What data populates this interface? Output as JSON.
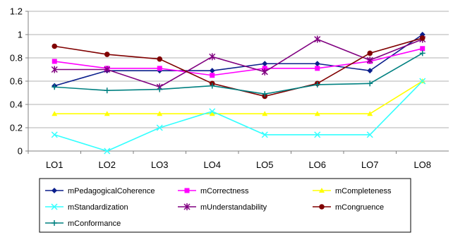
{
  "chart_data": {
    "type": "line",
    "categories": [
      "LO1",
      "LO2",
      "LO3",
      "LO4",
      "LO5",
      "LO6",
      "LO7",
      "LO8"
    ],
    "ylim": [
      0,
      1.2
    ],
    "yticks": [
      "0",
      "0.2",
      "0.4",
      "0.6",
      "0.8",
      "1",
      "1.2"
    ],
    "grid": true,
    "legend_position": "bottom",
    "series": [
      {
        "name": "mPedagogicalCoherence",
        "color": "#0b1f8c",
        "marker": "diamond",
        "values": [
          0.56,
          0.69,
          0.69,
          0.69,
          0.75,
          0.75,
          0.69,
          1.0
        ]
      },
      {
        "name": "mCorrectness",
        "color": "#ff00ff",
        "marker": "square",
        "values": [
          0.77,
          0.71,
          0.71,
          0.65,
          0.71,
          0.71,
          0.77,
          0.88
        ]
      },
      {
        "name": "mCompleteness",
        "color": "#ffff00",
        "marker": "triangle",
        "values": [
          0.32,
          0.32,
          0.32,
          0.32,
          0.32,
          0.32,
          0.32,
          0.6
        ]
      },
      {
        "name": "mStandardization",
        "color": "#33ffff",
        "marker": "x",
        "values": [
          0.14,
          0.0,
          0.2,
          0.34,
          0.14,
          0.14,
          0.14,
          0.6
        ]
      },
      {
        "name": "mUnderstandability",
        "color": "#800080",
        "marker": "star",
        "values": [
          0.7,
          0.7,
          0.55,
          0.81,
          0.68,
          0.96,
          0.78,
          0.96
        ]
      },
      {
        "name": "mCongruence",
        "color": "#800000",
        "marker": "circle",
        "values": [
          0.9,
          0.83,
          0.79,
          0.58,
          0.47,
          0.58,
          0.84,
          0.97
        ]
      },
      {
        "name": "mConformance",
        "color": "#008080",
        "marker": "plus",
        "values": [
          0.55,
          0.52,
          0.53,
          0.56,
          0.49,
          0.57,
          0.58,
          0.84
        ]
      }
    ]
  }
}
